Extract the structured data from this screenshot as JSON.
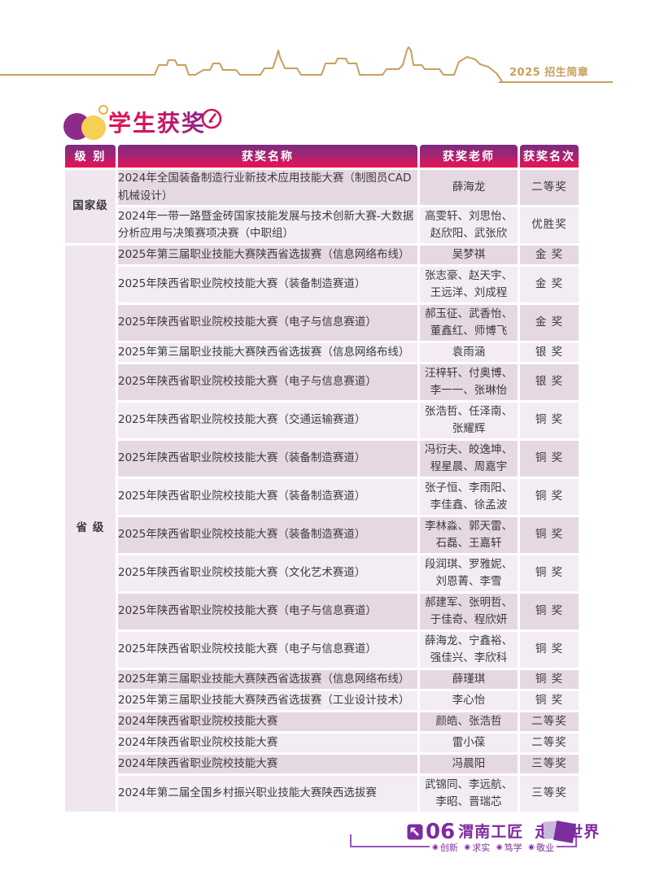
{
  "brand": {
    "label": "2025 招生简章"
  },
  "title": {
    "text": "学生获奖"
  },
  "table": {
    "headers": [
      "级 别",
      "获奖名称",
      "获奖老师",
      "获奖名次"
    ],
    "groups": [
      {
        "level": "国家级",
        "rows": [
          {
            "name": "2024年全国装备制造行业新技术应用技能大赛（制图员CAD机械设计）",
            "teachers": "薛海龙",
            "rank": "二等奖",
            "two_line": false
          },
          {
            "name": "2024年一带一路暨金砖国家技能发展与技术创新大赛-大数据分析应用与决策赛项决赛（中职组）",
            "teachers": "高雯轩、刘思怡、赵欣阳、武张欣",
            "rank": "优胜奖",
            "two_line": true
          }
        ]
      },
      {
        "level": "省 级",
        "rows": [
          {
            "name": "2025年第三届职业技能大赛陕西省选拔赛（信息网络布线）",
            "teachers": "吴梦祺",
            "rank": "金 奖",
            "two_line": false
          },
          {
            "name": "2025年陕西省职业院校技能大赛（装备制造赛道）",
            "teachers": "张志豪、赵天宇、王远洋、刘成程",
            "rank": "金 奖",
            "two_line": true
          },
          {
            "name": "2025年陕西省职业院校技能大赛（电子与信息赛道）",
            "teachers": "郝玉征、武香怡、董鑫红、师博飞",
            "rank": "金 奖",
            "two_line": true
          },
          {
            "name": "2025年第三届职业技能大赛陕西省选拔赛（信息网络布线）",
            "teachers": "袁雨涵",
            "rank": "银 奖",
            "two_line": false
          },
          {
            "name": "2025年陕西省职业院校技能大赛（电子与信息赛道）",
            "teachers": "汪梓轩、付奥博、李一一、张琳怡",
            "rank": "银 奖",
            "two_line": true
          },
          {
            "name": "2025年陕西省职业院校技能大赛（交通运输赛道）",
            "teachers": "张浩哲、任泽南、张耀辉",
            "rank": "铜 奖",
            "two_line": true
          },
          {
            "name": "2025年陕西省职业院校技能大赛（装备制造赛道）",
            "teachers": "冯衍夫、皎逸坤、程星晨、周嘉宇",
            "rank": "铜 奖",
            "two_line": true
          },
          {
            "name": "2025年陕西省职业院校技能大赛（装备制造赛道）",
            "teachers": "张子恒、李雨阳、李佳鑫、徐孟波",
            "rank": "铜 奖",
            "two_line": true
          },
          {
            "name": "2025年陕西省职业院校技能大赛（装备制造赛道）",
            "teachers": "李林淼、郭天雷、石磊、王嘉轩",
            "rank": "铜 奖",
            "two_line": true
          },
          {
            "name": "2025年陕西省职业院校技能大赛（文化艺术赛道）",
            "teachers": "段润琪、罗雅妮、刘恩菁、李雪",
            "rank": "铜 奖",
            "two_line": true
          },
          {
            "name": "2025年陕西省职业院校技能大赛（电子与信息赛道）",
            "teachers": "郝建军、张明哲、于佳奇、程欣妍",
            "rank": "铜 奖",
            "two_line": true
          },
          {
            "name": "2025年陕西省职业院校技能大赛（电子与信息赛道）",
            "teachers": "薛海龙、宁鑫裕、强佳兴、李欣科",
            "rank": "铜 奖",
            "two_line": true
          },
          {
            "name": "2025年第三届职业技能大赛陕西省选拔赛（信息网络布线）",
            "teachers": "薛瑾琪",
            "rank": "铜 奖",
            "two_line": false
          },
          {
            "name": "2025年第三届职业技能大赛陕西省选拔赛（工业设计技术）",
            "teachers": "李心怡",
            "rank": "铜 奖",
            "two_line": false
          },
          {
            "name": "2024年陕西省职业院校技能大赛",
            "teachers": "颜皓、张浩哲",
            "rank": "二等奖",
            "two_line": false
          },
          {
            "name": "2024年陕西省职业院校技能大赛",
            "teachers": "雷小葆",
            "rank": "二等奖",
            "two_line": false
          },
          {
            "name": "2024年陕西省职业院校技能大赛",
            "teachers": "冯晨阳",
            "rank": "三等奖",
            "two_line": false
          },
          {
            "name": "2024年第二届全国乡村振兴职业技能大赛陕西选拔赛",
            "teachers": "武锦同、李远航、李昭、晋瑞芯",
            "rank": "三等奖",
            "two_line": true
          }
        ]
      }
    ]
  },
  "footer": {
    "page_no": "06",
    "slogan_left": "渭南工匠",
    "slogan_right": "走向世界",
    "values": [
      "创新",
      "求实",
      "笃学",
      "敬业"
    ],
    "bullet_icon": "◉"
  },
  "colors": {
    "gold": "#c8a05c",
    "header_purple": "#7c2c80",
    "header_crimson": "#ea1255",
    "title_red": "#e31350",
    "title_purple": "#8f2390",
    "level_text": "#b23b78",
    "row_dark": "#e6d8e3",
    "row_light": "#f3ecf2",
    "footer_purple": "#7f2ba0",
    "square_light": "#c9b9dc",
    "square_dark": "#7b2f9f"
  }
}
